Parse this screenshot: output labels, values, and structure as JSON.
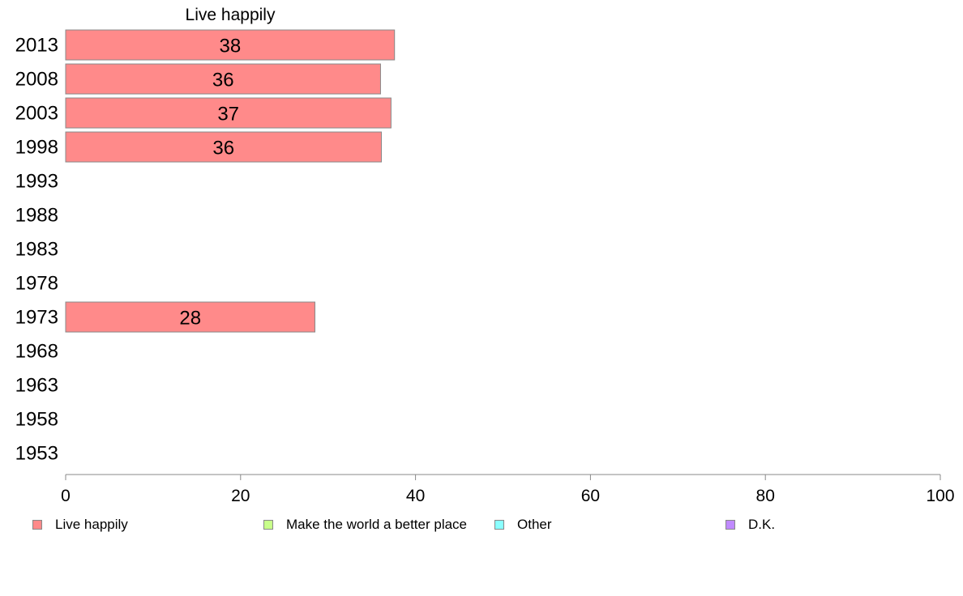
{
  "chart_data": {
    "type": "bar",
    "orientation": "horizontal",
    "title": "Live happily",
    "categories": [
      "2013",
      "2008",
      "2003",
      "1998",
      "1993",
      "1988",
      "1983",
      "1978",
      "1973",
      "1968",
      "1963",
      "1958",
      "1953"
    ],
    "series": [
      {
        "name": "Live happily",
        "color": "#ff8a8a",
        "values": [
          37.6,
          36.0,
          37.2,
          36.1,
          null,
          null,
          null,
          null,
          28.5,
          null,
          null,
          null,
          null
        ],
        "labels": [
          "38",
          "36",
          "37",
          "36",
          "",
          "",
          "",
          "",
          "28",
          "",
          "",
          "",
          ""
        ]
      }
    ],
    "xlim": [
      0,
      100
    ],
    "xticks": [
      "0",
      "20",
      "40",
      "60",
      "80",
      "100"
    ],
    "grid": false,
    "legend": {
      "position": "bottom",
      "items": [
        {
          "label": "Live happily",
          "color": "#ff8a8a"
        },
        {
          "label": "Make the world a better place",
          "color": "#c8ff8a"
        },
        {
          "label": "Other",
          "color": "#8affff"
        },
        {
          "label": "D.K.",
          "color": "#c08aff"
        }
      ]
    }
  }
}
